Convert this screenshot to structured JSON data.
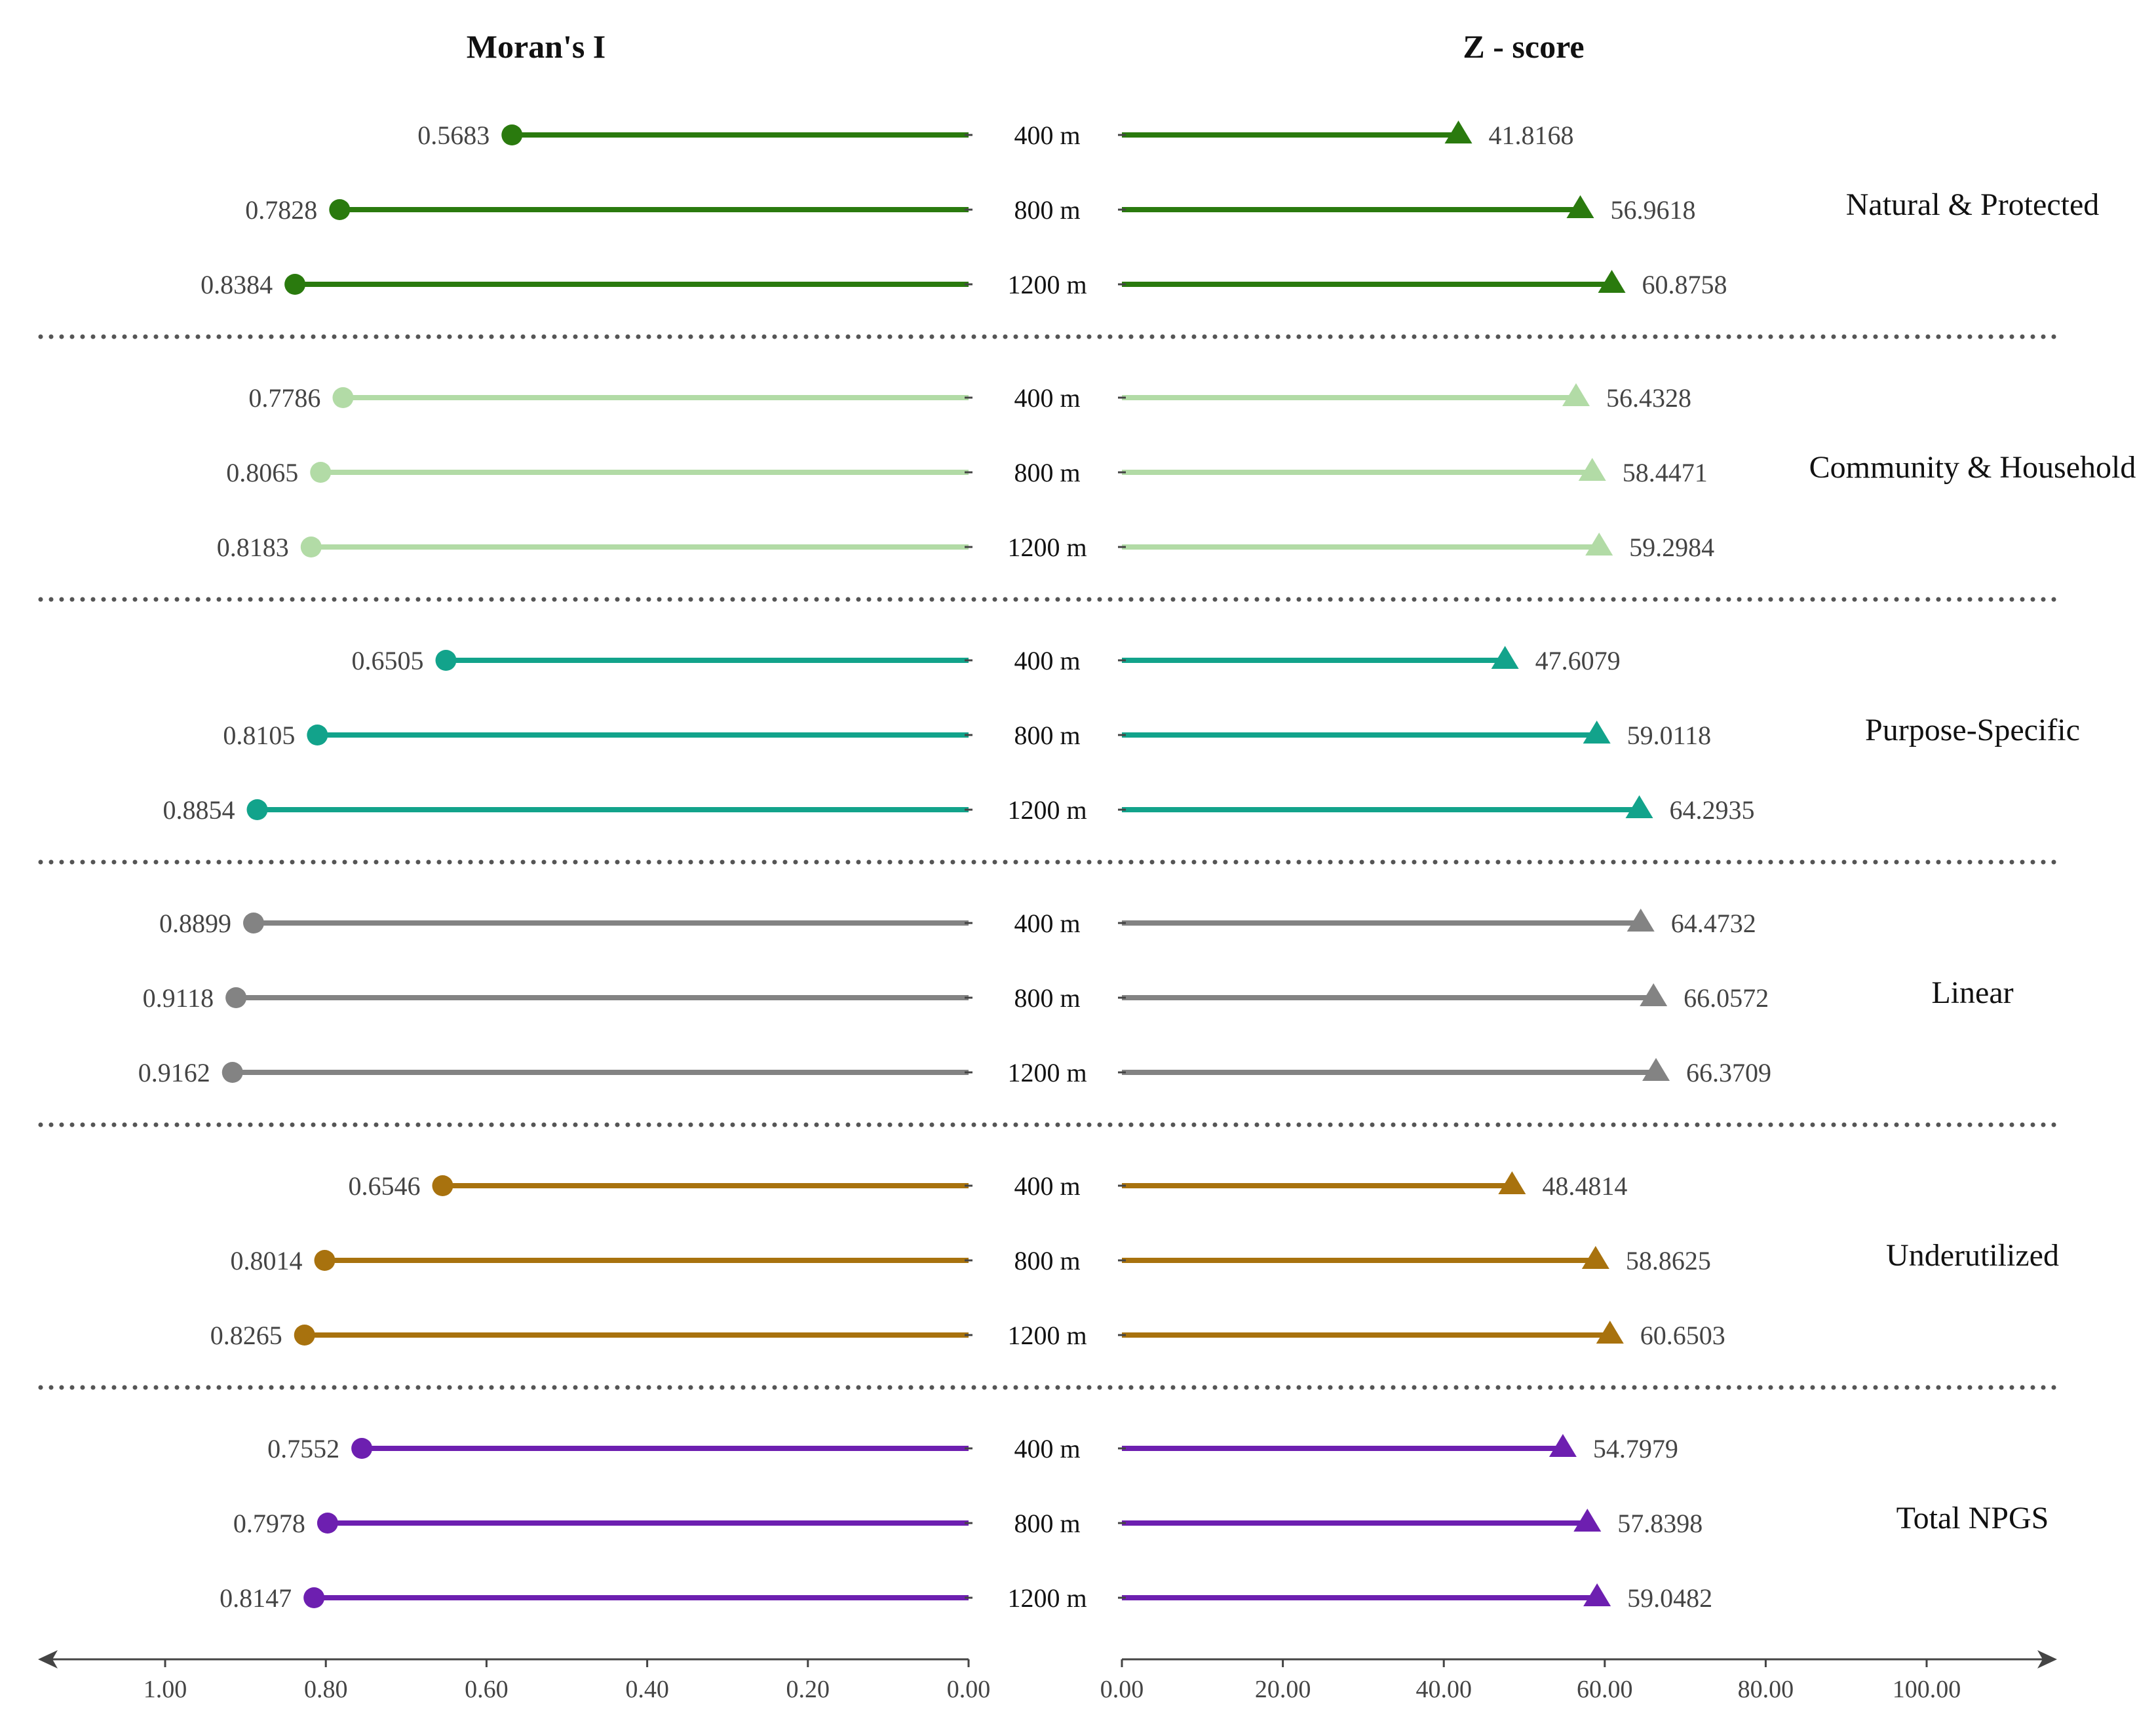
{
  "chart_data": {
    "type": "lollipop",
    "titles": {
      "left": "Moran's I",
      "right": "Z - score"
    },
    "left_axis": {
      "ticks": [
        "1.00",
        "0.80",
        "0.60",
        "0.40",
        "0.20",
        "0.00"
      ],
      "tick_values": [
        1.0,
        0.8,
        0.6,
        0.4,
        0.2,
        0.0
      ],
      "range": [
        0,
        1.14
      ],
      "reversed": true
    },
    "right_axis": {
      "ticks": [
        "0.00",
        "20.00",
        "40.00",
        "60.00",
        "80.00",
        "100.00"
      ],
      "tick_values": [
        0,
        20,
        40,
        60,
        80,
        100
      ],
      "range": [
        0,
        115
      ]
    },
    "groups": [
      {
        "name": "Natural & Protected",
        "color": "#2a7a0e",
        "rows": [
          {
            "distance": "400 m",
            "moran": 0.5683,
            "moran_label": "0.5683",
            "z": 41.8168,
            "z_label": "41.8168"
          },
          {
            "distance": "800 m",
            "moran": 0.7828,
            "moran_label": "0.7828",
            "z": 56.9618,
            "z_label": "56.9618"
          },
          {
            "distance": "1200 m",
            "moran": 0.8384,
            "moran_label": "0.8384",
            "z": 60.8758,
            "z_label": "60.8758"
          }
        ]
      },
      {
        "name": "Community & Household",
        "color": "#b2dba6",
        "rows": [
          {
            "distance": "400 m",
            "moran": 0.7786,
            "moran_label": "0.7786",
            "z": 56.4328,
            "z_label": "56.4328"
          },
          {
            "distance": "800 m",
            "moran": 0.8065,
            "moran_label": "0.8065",
            "z": 58.4471,
            "z_label": "58.4471"
          },
          {
            "distance": "1200 m",
            "moran": 0.8183,
            "moran_label": "0.8183",
            "z": 59.2984,
            "z_label": "59.2984"
          }
        ]
      },
      {
        "name": "Purpose-Specific",
        "color": "#12a38b",
        "rows": [
          {
            "distance": "400 m",
            "moran": 0.6505,
            "moran_label": "0.6505",
            "z": 47.6079,
            "z_label": "47.6079"
          },
          {
            "distance": "800 m",
            "moran": 0.8105,
            "moran_label": "0.8105",
            "z": 59.0118,
            "z_label": "59.0118"
          },
          {
            "distance": "1200 m",
            "moran": 0.8854,
            "moran_label": "0.8854",
            "z": 64.2935,
            "z_label": "64.2935"
          }
        ]
      },
      {
        "name": "Linear",
        "color": "#838383",
        "rows": [
          {
            "distance": "400 m",
            "moran": 0.8899,
            "moran_label": "0.8899",
            "z": 64.4732,
            "z_label": "64.4732"
          },
          {
            "distance": "800 m",
            "moran": 0.9118,
            "moran_label": "0.9118",
            "z": 66.0572,
            "z_label": "66.0572"
          },
          {
            "distance": "1200 m",
            "moran": 0.9162,
            "moran_label": "0.9162",
            "z": 66.3709,
            "z_label": "66.3709"
          }
        ]
      },
      {
        "name": "Underutilized",
        "color": "#a8720e",
        "rows": [
          {
            "distance": "400 m",
            "moran": 0.6546,
            "moran_label": "0.6546",
            "z": 48.4814,
            "z_label": "48.4814"
          },
          {
            "distance": "800 m",
            "moran": 0.8014,
            "moran_label": "0.8014",
            "z": 58.8625,
            "z_label": "58.8625"
          },
          {
            "distance": "1200 m",
            "moran": 0.8265,
            "moran_label": "0.8265",
            "z": 60.6503,
            "z_label": "60.6503"
          }
        ]
      },
      {
        "name": "Total NPGS",
        "color": "#6d1fb0",
        "rows": [
          {
            "distance": "400 m",
            "moran": 0.7552,
            "moran_label": "0.7552",
            "z": 54.7979,
            "z_label": "54.7979"
          },
          {
            "distance": "800 m",
            "moran": 0.7978,
            "moran_label": "0.7978",
            "z": 57.8398,
            "z_label": "57.8398"
          },
          {
            "distance": "1200 m",
            "moran": 0.8147,
            "moran_label": "0.8147",
            "z": 59.0482,
            "z_label": "59.0482"
          }
        ]
      }
    ]
  }
}
